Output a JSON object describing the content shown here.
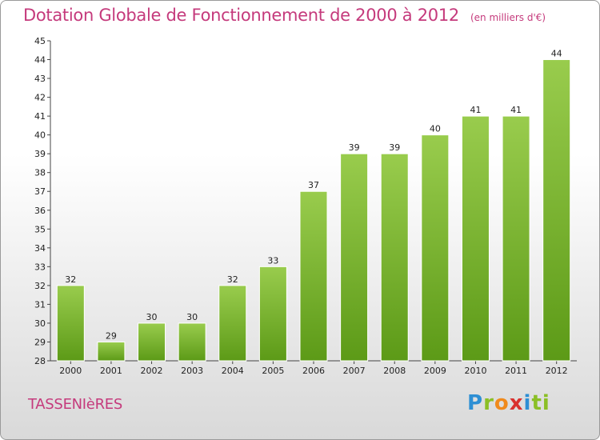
{
  "header": {
    "title": "Dotation Globale de Fonctionnement de 2000 à 2012",
    "subtitle": "(en milliers d'€)"
  },
  "commune": "TASSENIèRES",
  "brand": {
    "parts": [
      "P",
      "r",
      "o",
      "x",
      "i",
      "ti"
    ]
  },
  "colors": {
    "bar_top": "#99cc4d",
    "bar_bottom": "#5c9a17",
    "title": "#c53a7c"
  },
  "chart_data": {
    "type": "bar",
    "title": "Dotation Globale de Fonctionnement de 2000 à 2012",
    "subtitle": "(en milliers d'€)",
    "categories": [
      "2000",
      "2001",
      "2002",
      "2003",
      "2004",
      "2005",
      "2006",
      "2007",
      "2008",
      "2009",
      "2010",
      "2011",
      "2012"
    ],
    "values": [
      32,
      29,
      30,
      30,
      32,
      33,
      37,
      39,
      39,
      40,
      41,
      41,
      44
    ],
    "ylim": [
      28,
      45
    ],
    "yticks": [
      "28",
      "29",
      "30",
      "31",
      "32",
      "33",
      "34",
      "35",
      "36",
      "37",
      "38",
      "39",
      "40",
      "41",
      "42",
      "43",
      "44",
      "45"
    ],
    "grid": false,
    "legend": "none"
  }
}
